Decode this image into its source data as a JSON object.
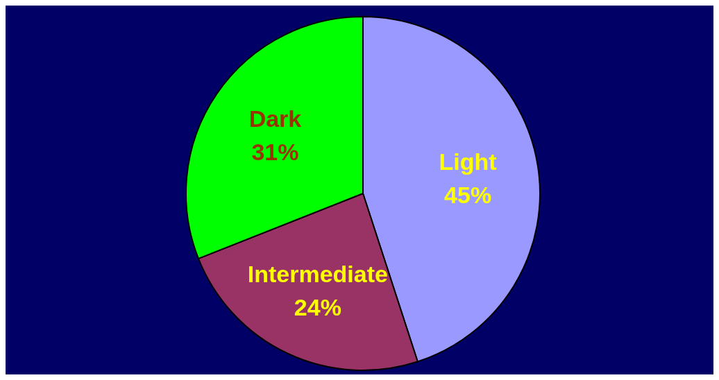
{
  "chart_data": {
    "type": "pie",
    "categories": [
      "Light",
      "Intermediate",
      "Dark"
    ],
    "values": [
      45,
      24,
      31
    ],
    "value_labels": [
      "45%",
      "24%",
      "31%"
    ],
    "colors": [
      "#9999ff",
      "#993366",
      "#00ff00"
    ]
  }
}
